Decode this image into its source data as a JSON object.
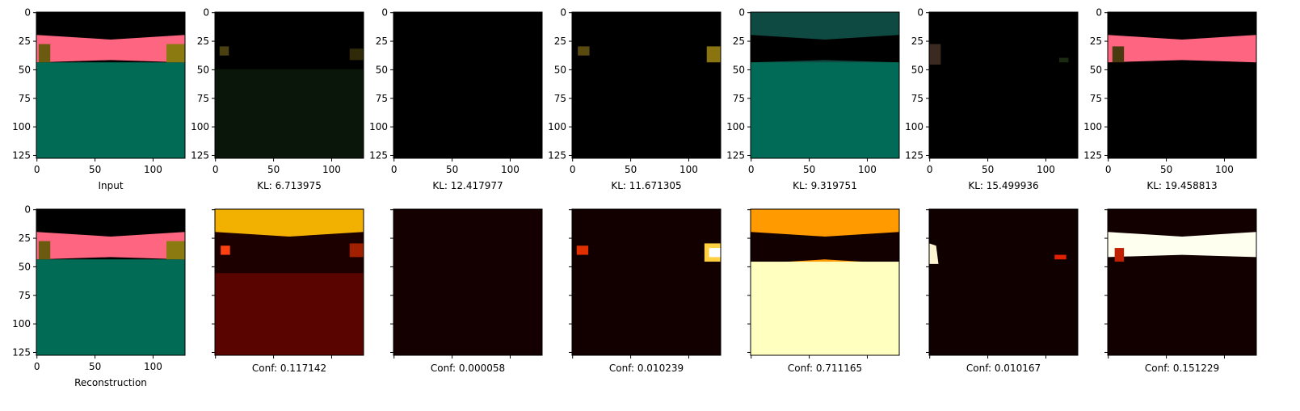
{
  "axes": {
    "xlim": [
      -0.5,
      127.5
    ],
    "ylim": [
      127.5,
      -0.5
    ],
    "xticks": [
      0,
      50,
      100
    ],
    "yticks": [
      0,
      25,
      50,
      75,
      100,
      125
    ]
  },
  "rows": [
    {
      "panels": [
        {
          "caption": "Input",
          "tick_labels": true
        },
        {
          "caption": "KL: 6.713975",
          "tick_labels": true
        },
        {
          "caption": "KL: 12.417977",
          "tick_labels": true
        },
        {
          "caption": "KL: 11.671305",
          "tick_labels": true
        },
        {
          "caption": "KL: 9.319751",
          "tick_labels": true
        },
        {
          "caption": "KL: 15.499936",
          "tick_labels": true
        },
        {
          "caption": "KL: 19.458813",
          "tick_labels": true
        }
      ]
    },
    {
      "panels": [
        {
          "caption": "Reconstruction",
          "tick_labels": true
        },
        {
          "caption": "Conf: 0.117142",
          "tick_labels": false
        },
        {
          "caption": "Conf: 0.000058",
          "tick_labels": false
        },
        {
          "caption": "Conf: 0.010239",
          "tick_labels": false
        },
        {
          "caption": "Conf: 0.711165",
          "tick_labels": false
        },
        {
          "caption": "Conf: 0.010167",
          "tick_labels": false
        },
        {
          "caption": "Conf: 0.151229",
          "tick_labels": false
        }
      ]
    }
  ]
}
